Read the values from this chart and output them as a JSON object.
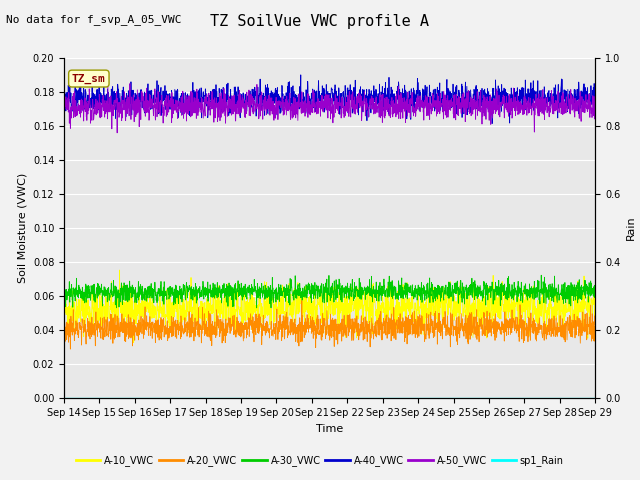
{
  "title": "TZ SoilVue VWC profile A",
  "no_data_text": "No data for f_svp_A_05_VWC",
  "tz_sm_label": "TZ_sm",
  "xlabel": "Time",
  "ylabel_left": "Soil Moisture (VWC)",
  "ylabel_right": "Rain",
  "ylim_left": [
    0.0,
    0.2
  ],
  "ylim_right": [
    0.0,
    1.0
  ],
  "yticks_left": [
    0.0,
    0.02,
    0.04,
    0.06,
    0.08,
    0.1,
    0.12,
    0.14,
    0.16,
    0.18,
    0.2
  ],
  "yticks_right": [
    0.0,
    0.2,
    0.4,
    0.6,
    0.8,
    1.0
  ],
  "x_tick_labels": [
    "Sep 14",
    "Sep 15",
    "Sep 16",
    "Sep 17",
    "Sep 18",
    "Sep 19",
    "Sep 20",
    "Sep 21",
    "Sep 22",
    "Sep 23",
    "Sep 24",
    "Sep 25",
    "Sep 26",
    "Sep 27",
    "Sep 28",
    "Sep 29"
  ],
  "series": {
    "A10": {
      "color": "#ffff00",
      "mean": 0.052,
      "noise": 0.006,
      "label": "A-10_VWC"
    },
    "A20": {
      "color": "#ff8c00",
      "mean": 0.041,
      "noise": 0.004,
      "label": "A-20_VWC"
    },
    "A30": {
      "color": "#00cc00",
      "mean": 0.062,
      "noise": 0.003,
      "label": "A-30_VWC"
    },
    "A40": {
      "color": "#0000cc",
      "mean": 0.175,
      "noise": 0.004,
      "label": "A-40_VWC"
    },
    "A50": {
      "color": "#9900cc",
      "mean": 0.171,
      "noise": 0.004,
      "label": "A-50_VWC"
    },
    "Rain": {
      "color": "#00ffff",
      "mean": 0.0,
      "noise": 0.0,
      "label": "sp1_Rain"
    }
  },
  "fig_facecolor": "#f2f2f2",
  "plot_facecolor": "#e8e8e8",
  "grid_color": "#ffffff",
  "title_fontsize": 11,
  "label_fontsize": 8,
  "tick_fontsize": 7,
  "legend_fontsize": 7,
  "nodata_fontsize": 8
}
